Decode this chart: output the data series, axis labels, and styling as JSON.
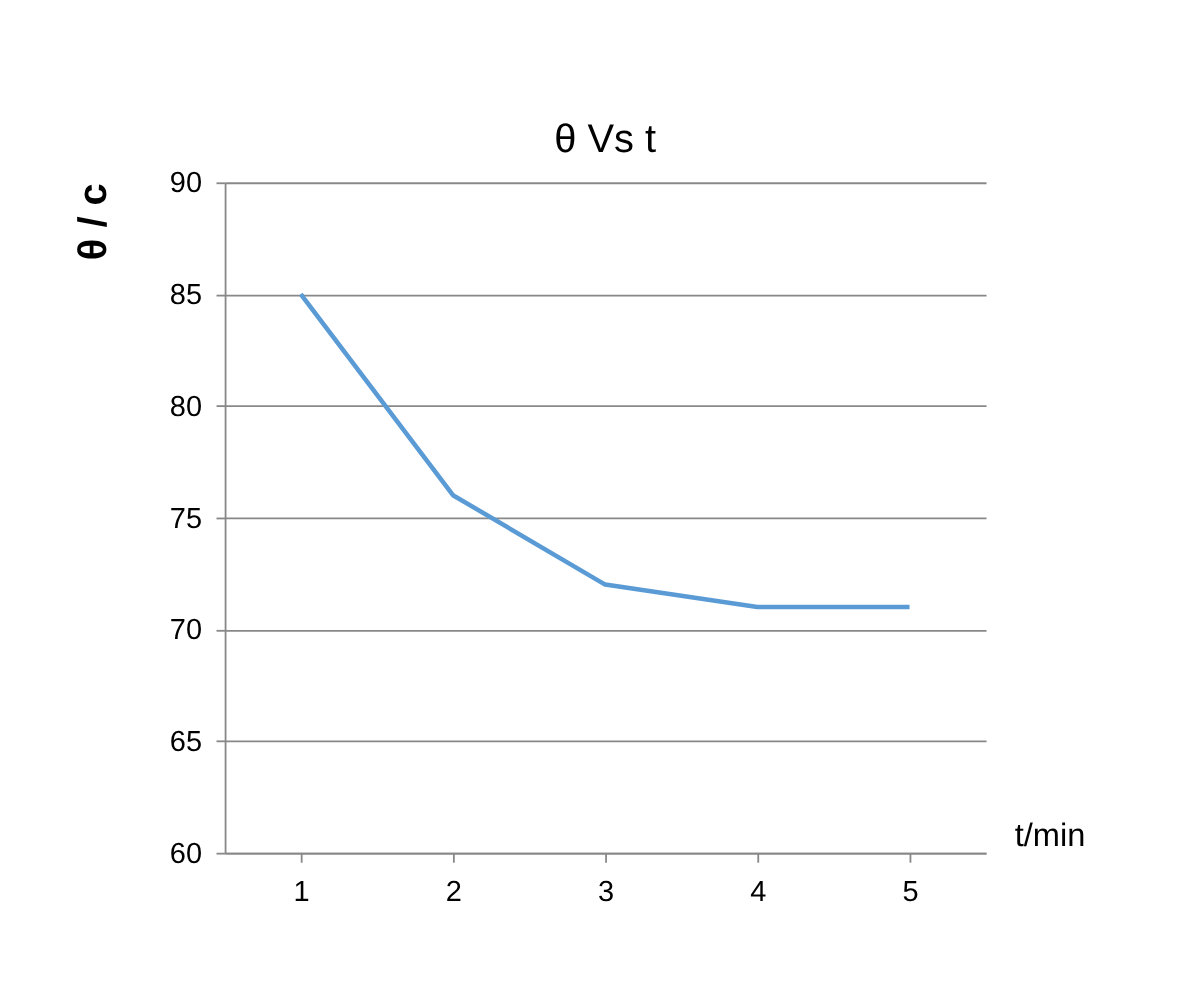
{
  "chart_data": {
    "type": "line",
    "title": "θ Vs t",
    "xlabel": "t/min",
    "ylabel": "θ / c",
    "categories": [
      "1",
      "2",
      "3",
      "4",
      "5"
    ],
    "series": [
      {
        "color": "#5b9bd5",
        "values": [
          85,
          76,
          72,
          71,
          71
        ]
      }
    ],
    "ylim": [
      60,
      90
    ],
    "yticks": [
      60,
      65,
      70,
      75,
      80,
      85,
      90
    ],
    "grid": "y",
    "marker": "none",
    "line_style": "solid"
  }
}
